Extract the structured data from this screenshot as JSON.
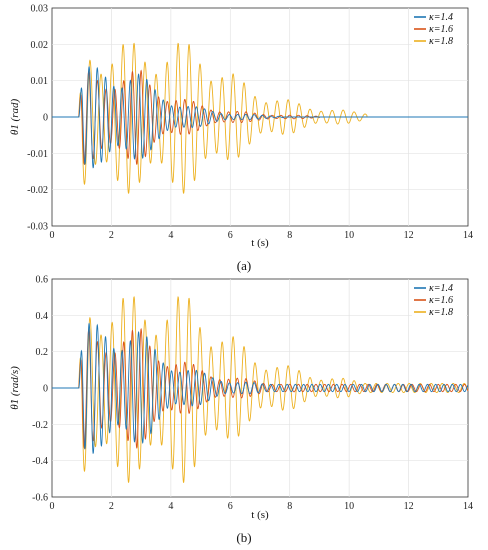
{
  "chart_data": [
    {
      "type": "line",
      "caption": "(a)",
      "xlabel": "t (s)",
      "ylabel": "θ1 (rad)",
      "xlim": [
        0,
        14
      ],
      "ylim": [
        -0.03,
        0.03
      ],
      "xticks": [
        0,
        2,
        4,
        6,
        8,
        10,
        12,
        14
      ],
      "yticks": [
        -0.03,
        -0.02,
        -0.01,
        0,
        0.01,
        0.02,
        0.03
      ],
      "ytick_labels": [
        "-0.03",
        "-0.02",
        "-0.01",
        "0",
        "0.01",
        "0.02",
        "0.03"
      ],
      "grid": true,
      "legend_placement": "top-right",
      "series": [
        {
          "name": "κ=1.4",
          "color": "#1f77b4",
          "onset": 0.9,
          "end": 7.8,
          "peak": 0.014,
          "freq": 3.6,
          "decay_start": 2.8,
          "tau": 1.3,
          "tail": 0
        },
        {
          "name": "κ=1.6",
          "color": "#d95319",
          "onset": 0.9,
          "end": 9.0,
          "peak": 0.013,
          "freq": 3.4,
          "decay_start": 3.0,
          "tau": 1.6,
          "tail": 0
        },
        {
          "name": "κ=1.8",
          "color": "#edb120",
          "onset": 0.9,
          "end": 10.6,
          "peak": 0.021,
          "freq": 2.7,
          "decay_start": 5.0,
          "tau": 2.0,
          "tail": 0
        }
      ]
    },
    {
      "type": "line",
      "caption": "(b)",
      "xlabel": "t (s)",
      "ylabel": "θ̇1 (rad/s)",
      "xlim": [
        0,
        14
      ],
      "ylim": [
        -0.6,
        0.6
      ],
      "xticks": [
        0,
        2,
        4,
        6,
        8,
        10,
        12,
        14
      ],
      "yticks": [
        -0.6,
        -0.4,
        -0.2,
        0,
        0.2,
        0.4,
        0.6
      ],
      "ytick_labels": [
        "-0.6",
        "-0.4",
        "-0.2",
        "0",
        "0.2",
        "0.4",
        "0.6"
      ],
      "grid": true,
      "legend_placement": "top-right",
      "series": [
        {
          "name": "κ=1.4",
          "color": "#1f77b4",
          "onset": 0.9,
          "end": 14,
          "peak": 0.36,
          "freq": 3.6,
          "decay_start": 2.8,
          "tau": 1.6,
          "tail": 0.02
        },
        {
          "name": "κ=1.6",
          "color": "#d95319",
          "onset": 0.9,
          "end": 14,
          "peak": 0.33,
          "freq": 3.4,
          "decay_start": 3.0,
          "tau": 1.9,
          "tail": 0.02
        },
        {
          "name": "κ=1.8",
          "color": "#edb120",
          "onset": 0.9,
          "end": 14,
          "peak": 0.52,
          "freq": 2.7,
          "decay_start": 4.8,
          "tau": 2.2,
          "tail": 0.025
        }
      ]
    }
  ]
}
